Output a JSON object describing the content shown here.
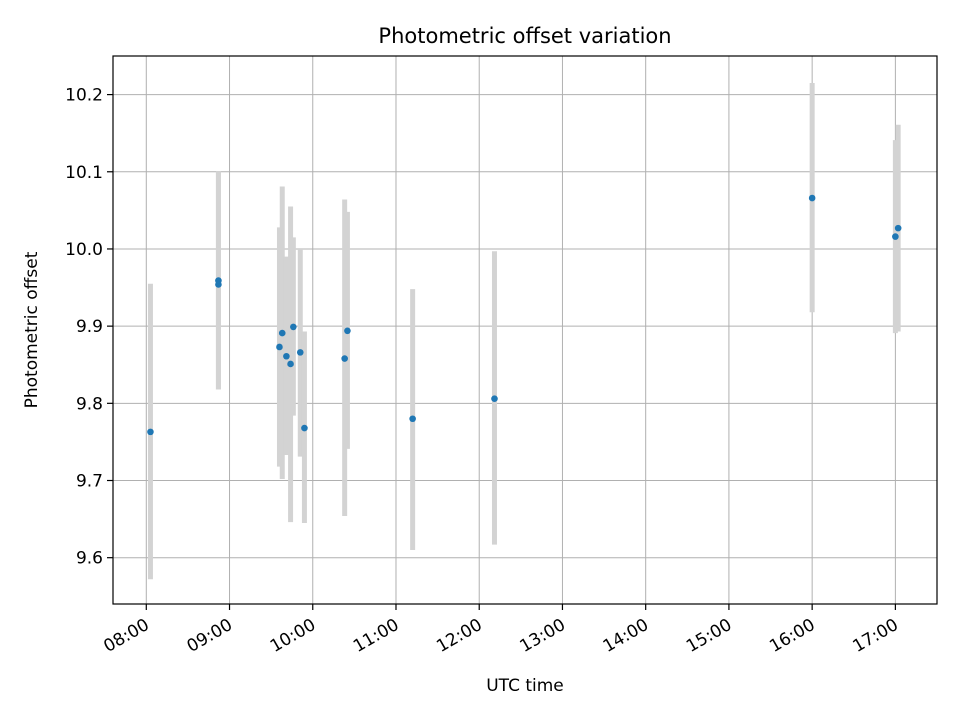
{
  "chart_data": {
    "type": "scatter",
    "title": "Photometric offset variation",
    "xlabel": "UTC time",
    "ylabel": "Photometric offset",
    "x_tick_labels": [
      "08:00",
      "09:00",
      "10:00",
      "11:00",
      "12:00",
      "13:00",
      "14:00",
      "15:00",
      "16:00",
      "17:00"
    ],
    "y_ticks": [
      9.6,
      9.7,
      9.8,
      9.9,
      10.0,
      10.1,
      10.2
    ],
    "y_tick_labels": [
      "9.6",
      "9.7",
      "9.8",
      "9.9",
      "10.0",
      "10.1",
      "10.2"
    ],
    "xlim": [
      "07:36",
      "17:30"
    ],
    "ylim": [
      9.54,
      10.25
    ],
    "grid": true,
    "point_color": "#1f77b4",
    "errorbar_color": "#d3d3d3",
    "points": [
      {
        "x": "08:03",
        "y": 9.763,
        "low": 9.572,
        "high": 9.955
      },
      {
        "x": "08:52",
        "y": 9.959,
        "low": 9.818,
        "high": 10.1
      },
      {
        "x": "08:52",
        "y": 9.954,
        "low": 9.818,
        "high": 10.1
      },
      {
        "x": "09:36",
        "y": 9.873,
        "low": 9.718,
        "high": 10.028
      },
      {
        "x": "09:38",
        "y": 9.891,
        "low": 9.702,
        "high": 10.081
      },
      {
        "x": "09:41",
        "y": 9.861,
        "low": 9.733,
        "high": 9.99
      },
      {
        "x": "09:44",
        "y": 9.851,
        "low": 9.646,
        "high": 10.055
      },
      {
        "x": "09:46",
        "y": 9.899,
        "low": 9.784,
        "high": 10.015
      },
      {
        "x": "09:51",
        "y": 9.866,
        "low": 9.731,
        "high": 10.001
      },
      {
        "x": "09:54",
        "y": 9.768,
        "low": 9.645,
        "high": 9.893
      },
      {
        "x": "10:23",
        "y": 9.858,
        "low": 9.654,
        "high": 10.064
      },
      {
        "x": "10:25",
        "y": 9.894,
        "low": 9.741,
        "high": 10.048
      },
      {
        "x": "11:12",
        "y": 9.78,
        "low": 9.61,
        "high": 9.948
      },
      {
        "x": "12:11",
        "y": 9.806,
        "low": 9.617,
        "high": 9.997
      },
      {
        "x": "16:00",
        "y": 10.066,
        "low": 9.918,
        "high": 10.215
      },
      {
        "x": "17:00",
        "y": 10.016,
        "low": 9.891,
        "high": 10.141
      },
      {
        "x": "17:02",
        "y": 10.027,
        "low": 9.893,
        "high": 10.161
      }
    ]
  }
}
